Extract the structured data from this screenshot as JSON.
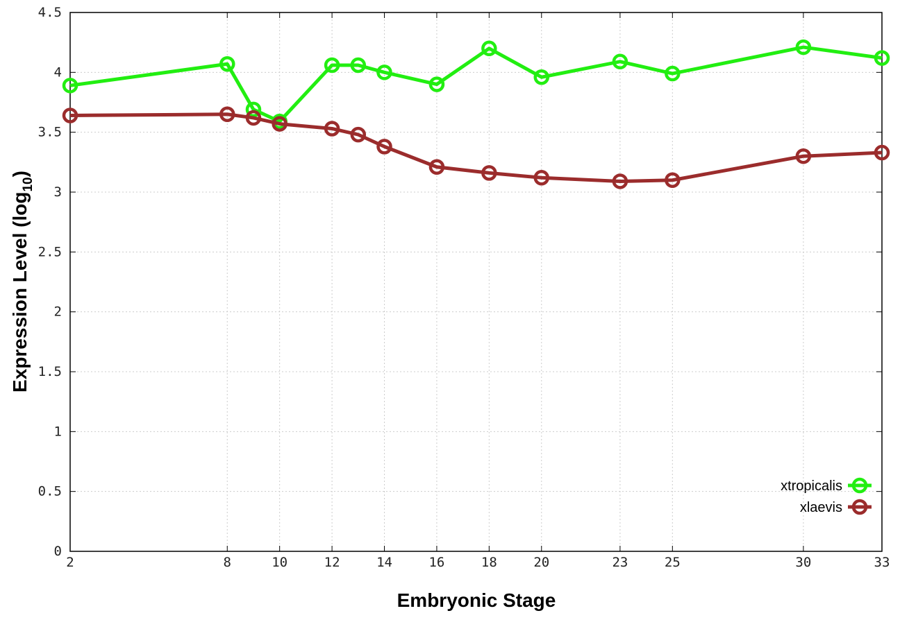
{
  "chart_data": {
    "type": "line",
    "title": "",
    "xlabel": "Embryonic Stage",
    "ylabel": "Expression Level (log",
    "ylabel_subscript": "10",
    "ylabel_suffix": ")",
    "x": [
      2,
      8,
      9,
      10,
      12,
      13,
      14,
      16,
      18,
      20,
      23,
      25,
      30,
      33
    ],
    "x_ticks": [
      "2",
      "8",
      "10",
      "12",
      "14",
      "16",
      "18",
      "20",
      "23",
      "25",
      "30",
      "33"
    ],
    "y_ticks": [
      "0",
      "0.5",
      "1",
      "1.5",
      "2",
      "2.5",
      "3",
      "3.5",
      "4",
      "4.5"
    ],
    "xlim": [
      2,
      33
    ],
    "ylim": [
      0,
      4.5
    ],
    "grid": true,
    "legend_position": "bottom-right",
    "series": [
      {
        "name": "xtropicalis",
        "color": "#22ee11",
        "values": [
          3.89,
          4.07,
          3.69,
          3.59,
          4.06,
          4.06,
          4.0,
          3.9,
          4.2,
          3.96,
          4.09,
          3.99,
          4.21,
          4.12
        ]
      },
      {
        "name": "xlaevis",
        "color": "#9b2c2c",
        "values": [
          3.64,
          3.65,
          3.62,
          3.57,
          3.53,
          3.48,
          3.38,
          3.21,
          3.16,
          3.12,
          3.09,
          3.1,
          3.3,
          3.33
        ]
      }
    ]
  }
}
